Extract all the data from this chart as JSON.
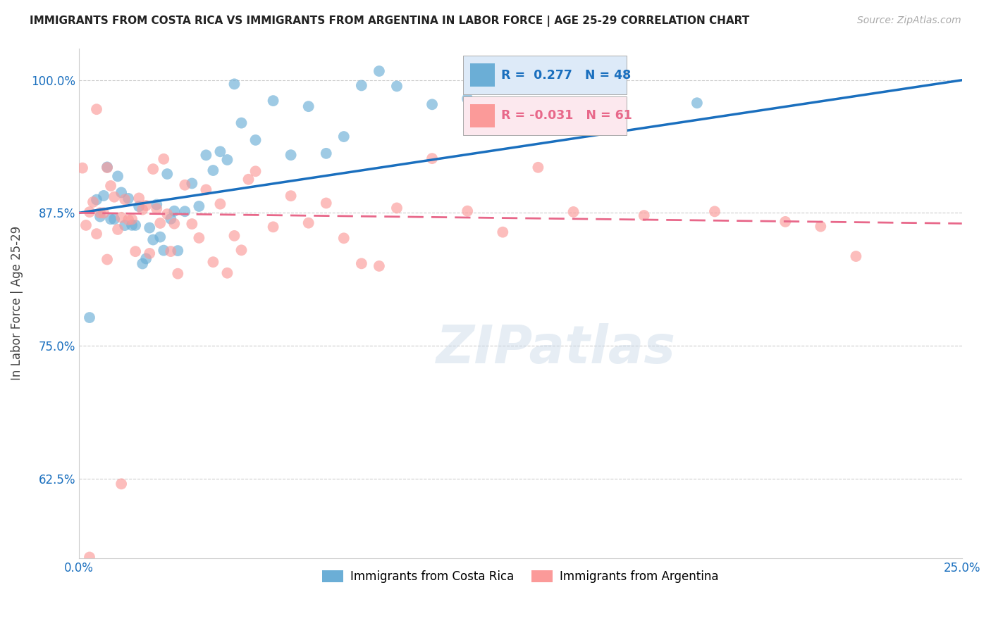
{
  "title": "IMMIGRANTS FROM COSTA RICA VS IMMIGRANTS FROM ARGENTINA IN LABOR FORCE | AGE 25-29 CORRELATION CHART",
  "source": "Source: ZipAtlas.com",
  "ylabel": "In Labor Force | Age 25-29",
  "xlim": [
    0.0,
    0.25
  ],
  "ylim": [
    0.55,
    1.03
  ],
  "yticks": [
    0.625,
    0.75,
    0.875,
    1.0
  ],
  "ytick_labels": [
    "62.5%",
    "75.0%",
    "87.5%",
    "100.0%"
  ],
  "xticks": [
    0.0,
    0.05,
    0.1,
    0.15,
    0.2,
    0.25
  ],
  "xtick_labels": [
    "0.0%",
    "",
    "",
    "",
    "",
    "25.0%"
  ],
  "inset_legend": [
    {
      "R": "0.277",
      "N": "48"
    },
    {
      "R": "-0.031",
      "N": "61"
    }
  ],
  "costa_rica_color": "#6baed6",
  "argentina_color": "#fb9a99",
  "blue_line_color": "#1a6fbe",
  "pink_line_color": "#e8688a",
  "cr_x": [
    0.005,
    0.006,
    0.007,
    0.008,
    0.009,
    0.01,
    0.011,
    0.012,
    0.013,
    0.014,
    0.015,
    0.016,
    0.017,
    0.018,
    0.019,
    0.02,
    0.021,
    0.022,
    0.023,
    0.024,
    0.025,
    0.026,
    0.027,
    0.028,
    0.03,
    0.032,
    0.034,
    0.036,
    0.038,
    0.04,
    0.042,
    0.044,
    0.046,
    0.05,
    0.055,
    0.06,
    0.065,
    0.07,
    0.075,
    0.08,
    0.085,
    0.09,
    0.1,
    0.11,
    0.13,
    0.15,
    0.175,
    0.003
  ],
  "cr_y": [
    0.875,
    0.875,
    0.875,
    0.88,
    0.875,
    0.875,
    0.87,
    0.875,
    0.875,
    0.875,
    0.875,
    0.875,
    0.875,
    0.875,
    0.875,
    0.875,
    0.875,
    0.875,
    0.875,
    0.875,
    0.875,
    0.875,
    0.875,
    0.875,
    0.89,
    0.9,
    0.91,
    0.92,
    0.93,
    0.94,
    0.94,
    0.95,
    0.96,
    0.97,
    0.96,
    0.96,
    0.97,
    0.98,
    0.98,
    0.99,
    0.99,
    0.99,
    0.98,
    0.99,
    0.99,
    0.99,
    0.99,
    0.75
  ],
  "arg_x": [
    0.001,
    0.002,
    0.003,
    0.004,
    0.005,
    0.006,
    0.007,
    0.008,
    0.009,
    0.01,
    0.011,
    0.012,
    0.013,
    0.014,
    0.015,
    0.016,
    0.017,
    0.018,
    0.019,
    0.02,
    0.021,
    0.022,
    0.023,
    0.024,
    0.025,
    0.026,
    0.027,
    0.028,
    0.03,
    0.032,
    0.034,
    0.036,
    0.038,
    0.04,
    0.042,
    0.044,
    0.046,
    0.048,
    0.05,
    0.055,
    0.06,
    0.065,
    0.07,
    0.075,
    0.08,
    0.085,
    0.09,
    0.1,
    0.11,
    0.12,
    0.13,
    0.14,
    0.16,
    0.18,
    0.2,
    0.21,
    0.22,
    0.005,
    0.008,
    0.012,
    0.003
  ],
  "arg_y": [
    0.875,
    0.875,
    0.875,
    0.875,
    0.875,
    0.875,
    0.875,
    0.875,
    0.875,
    0.875,
    0.875,
    0.875,
    0.875,
    0.875,
    0.875,
    0.875,
    0.875,
    0.875,
    0.875,
    0.875,
    0.875,
    0.875,
    0.875,
    0.875,
    0.875,
    0.875,
    0.875,
    0.875,
    0.875,
    0.875,
    0.87,
    0.87,
    0.87,
    0.87,
    0.87,
    0.87,
    0.87,
    0.87,
    0.87,
    0.87,
    0.87,
    0.87,
    0.87,
    0.87,
    0.87,
    0.87,
    0.87,
    0.87,
    0.87,
    0.87,
    0.87,
    0.87,
    0.87,
    0.87,
    0.87,
    0.87,
    0.87,
    0.96,
    0.92,
    0.59,
    0.56
  ]
}
